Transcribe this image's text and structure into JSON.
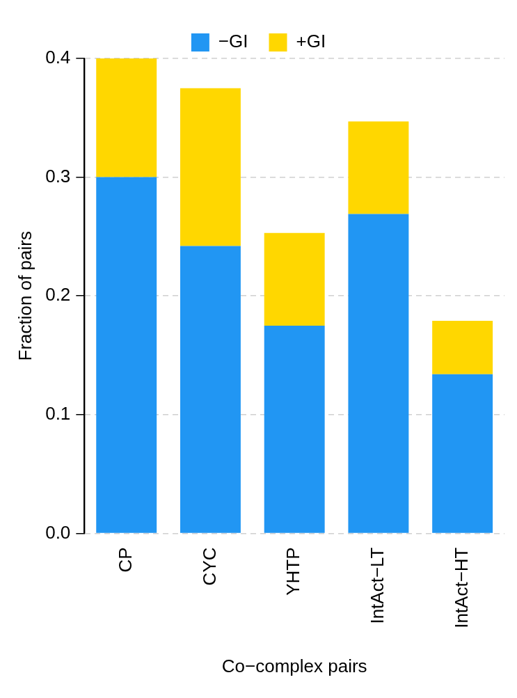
{
  "chart_data": {
    "type": "bar",
    "stacked": true,
    "xlabel": "Co−complex pairs",
    "ylabel": "Fraction of pairs",
    "categories": [
      "CP",
      "CYC",
      "YHTP",
      "IntAct−LT",
      "IntAct−HT"
    ],
    "series": [
      {
        "name": "−GI",
        "color": "#2196f3",
        "values": [
          0.3,
          0.242,
          0.175,
          0.269,
          0.134
        ]
      },
      {
        "name": "+GI",
        "color": "#ffd700",
        "values": [
          0.1,
          0.133,
          0.078,
          0.078,
          0.045
        ]
      }
    ],
    "ylim": [
      0,
      0.4
    ],
    "yticks": [
      {
        "value": 0,
        "label": "0.0"
      },
      0.1,
      0.2,
      0.3,
      0.4
    ],
    "grid": "y",
    "legend": "top"
  }
}
